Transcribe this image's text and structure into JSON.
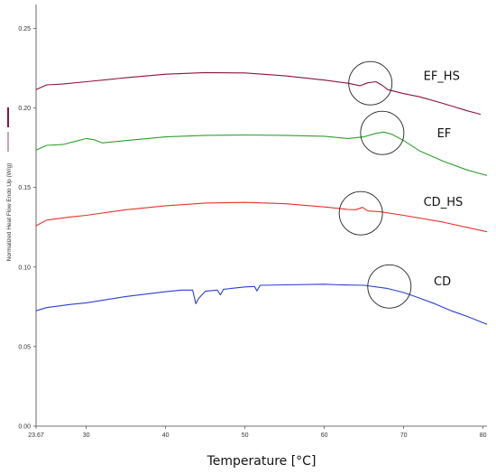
{
  "chart_data": {
    "type": "line",
    "xlabel": "Temperature [°C]",
    "ylabel": "Normalized Heat Flow Endo Up (W/g)",
    "xlim": [
      23.67,
      80.5
    ],
    "ylim": [
      0.0,
      0.265
    ],
    "x_ticks": [
      {
        "value": 23.67,
        "label": "23.67"
      },
      {
        "value": 30,
        "label": "30"
      },
      {
        "value": 40,
        "label": "40"
      },
      {
        "value": 50,
        "label": "50"
      },
      {
        "value": 60,
        "label": "60"
      },
      {
        "value": 70,
        "label": "70"
      },
      {
        "value": 80,
        "label": "80"
      }
    ],
    "y_ticks": [
      {
        "value": 0.0,
        "label": "0.00"
      },
      {
        "value": 0.05,
        "label": "0.05"
      },
      {
        "value": 0.1,
        "label": "0.10"
      },
      {
        "value": 0.15,
        "label": "0.15"
      },
      {
        "value": 0.2,
        "label": "0.20"
      },
      {
        "value": 0.25,
        "label": "0.25"
      }
    ],
    "grid": false,
    "series": [
      {
        "name": "EF_HS",
        "color": "#8b1538",
        "label_at": [
          72.5,
          0.2175
        ],
        "points": [
          [
            23.67,
            0.2115
          ],
          [
            25,
            0.2145
          ],
          [
            27,
            0.215
          ],
          [
            30,
            0.2165
          ],
          [
            35,
            0.219
          ],
          [
            40,
            0.2212
          ],
          [
            45,
            0.2222
          ],
          [
            50,
            0.222
          ],
          [
            55,
            0.2202
          ],
          [
            60,
            0.2175
          ],
          [
            63,
            0.2155
          ],
          [
            64.5,
            0.214
          ],
          [
            65.5,
            0.2158
          ],
          [
            66.5,
            0.2165
          ],
          [
            67.3,
            0.2142
          ],
          [
            68,
            0.2115
          ],
          [
            70,
            0.209
          ],
          [
            72,
            0.207
          ],
          [
            75,
            0.2028
          ],
          [
            78,
            0.1982
          ],
          [
            79.7,
            0.196
          ]
        ]
      },
      {
        "name": "EF",
        "color": "#2ea02c",
        "label_at": [
          74.2,
          0.1815
        ],
        "points": [
          [
            23.67,
            0.1735
          ],
          [
            25,
            0.1765
          ],
          [
            27,
            0.177
          ],
          [
            29,
            0.1795
          ],
          [
            30,
            0.1808
          ],
          [
            31,
            0.18
          ],
          [
            32,
            0.178
          ],
          [
            35,
            0.1795
          ],
          [
            40,
            0.1818
          ],
          [
            45,
            0.1828
          ],
          [
            50,
            0.183
          ],
          [
            55,
            0.1828
          ],
          [
            60,
            0.1822
          ],
          [
            63,
            0.1808
          ],
          [
            65,
            0.1818
          ],
          [
            66.5,
            0.184
          ],
          [
            67.5,
            0.1848
          ],
          [
            68.5,
            0.1835
          ],
          [
            70,
            0.1795
          ],
          [
            72,
            0.173
          ],
          [
            75,
            0.1665
          ],
          [
            78,
            0.161
          ],
          [
            80.5,
            0.1575
          ]
        ]
      },
      {
        "name": "CD_HS",
        "color": "#e8312a",
        "label_at": [
          72.5,
          0.1385
        ],
        "points": [
          [
            23.67,
            0.126
          ],
          [
            25,
            0.1295
          ],
          [
            28,
            0.1315
          ],
          [
            30,
            0.1325
          ],
          [
            35,
            0.136
          ],
          [
            40,
            0.1385
          ],
          [
            45,
            0.1402
          ],
          [
            50,
            0.1406
          ],
          [
            55,
            0.1398
          ],
          [
            60,
            0.1378
          ],
          [
            63,
            0.1362
          ],
          [
            64,
            0.136
          ],
          [
            64.8,
            0.1375
          ],
          [
            65.5,
            0.1352
          ],
          [
            67,
            0.1348
          ],
          [
            70,
            0.1325
          ],
          [
            75,
            0.1282
          ],
          [
            80.5,
            0.1222
          ]
        ]
      },
      {
        "name": "CD",
        "color": "#2b3fd0",
        "label_at": [
          73.8,
          0.0885
        ],
        "points": [
          [
            23.67,
            0.0725
          ],
          [
            25,
            0.0745
          ],
          [
            28,
            0.0765
          ],
          [
            30,
            0.0775
          ],
          [
            35,
            0.0815
          ],
          [
            40,
            0.0845
          ],
          [
            42,
            0.0855
          ],
          [
            43.4,
            0.0855
          ],
          [
            43.8,
            0.077
          ],
          [
            44.2,
            0.0805
          ],
          [
            45,
            0.0848
          ],
          [
            46.5,
            0.0855
          ],
          [
            46.9,
            0.0825
          ],
          [
            47.3,
            0.086
          ],
          [
            50,
            0.0875
          ],
          [
            51.2,
            0.0878
          ],
          [
            51.5,
            0.085
          ],
          [
            51.9,
            0.0885
          ],
          [
            55,
            0.0888
          ],
          [
            60,
            0.0892
          ],
          [
            62,
            0.0888
          ],
          [
            65,
            0.0885
          ],
          [
            67,
            0.0872
          ],
          [
            68,
            0.0865
          ],
          [
            70,
            0.084
          ],
          [
            72,
            0.0805
          ],
          [
            74,
            0.0768
          ],
          [
            76,
            0.0725
          ],
          [
            78,
            0.069
          ],
          [
            80.5,
            0.064
          ]
        ]
      }
    ],
    "annotations": [
      {
        "type": "circle",
        "x": 65.8,
        "y": 0.2155
      },
      {
        "type": "circle",
        "x": 67.3,
        "y": 0.1843
      },
      {
        "type": "circle",
        "x": 64.6,
        "y": 0.1338
      },
      {
        "type": "circle",
        "x": 68.2,
        "y": 0.0878
      }
    ]
  }
}
